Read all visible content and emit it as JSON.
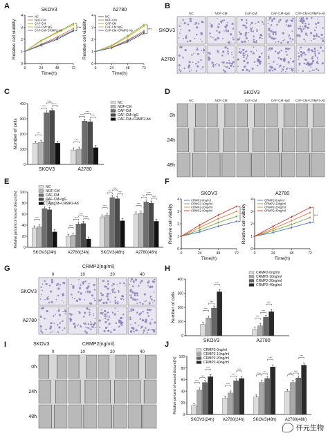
{
  "panel_letters": {
    "A": "A",
    "B": "B",
    "C": "C",
    "D": "D",
    "E": "E",
    "F": "F",
    "G": "G",
    "H": "H",
    "I": "I",
    "J": "J"
  },
  "colors": {
    "nc": "#555555",
    "nof": "#e07b39",
    "caf": "#7aa83c",
    "igg": "#d4b12f",
    "ab": "#4a6fb5",
    "bar_nc": "#dcdcdc",
    "bar_nof": "#b4b4b4",
    "bar_caf": "#6e6e6e",
    "bar_igg": "#4a4a4a",
    "bar_ab": "#111111",
    "stain": "#8a7fb8",
    "scratch": "#c8c8c8"
  },
  "legend5": [
    "NC",
    "NOF-CM",
    "CAF-CM",
    "CAF-CM+IgG",
    "CAF-CM+CRMP2-Ab"
  ],
  "legend4": [
    "CRMP2-0ng/ml",
    "CRMP2-10ng/ml",
    "CRMP2-20ng/ml",
    "CRMP2-40ng/ml"
  ],
  "sig": "***",
  "panelA": {
    "ylabel": "Relative cell viability",
    "xlabel": "Time(h)",
    "titles": [
      "SKOV3",
      "A2780"
    ],
    "xticks": [
      "0",
      "24",
      "48",
      "72"
    ],
    "yticks": [
      "0",
      "1",
      "2",
      "3",
      "4"
    ]
  },
  "panelB": {
    "rows": [
      "SKOV3",
      "A2780"
    ],
    "cols": [
      "NC",
      "NOF-CM",
      "CAF-CM",
      "CAF-CM+IgG",
      "CAF-CM+CRMP2-Ab"
    ]
  },
  "panelC": {
    "ylabel": "Number of cells",
    "groups": [
      "SKOV3",
      "A2780"
    ],
    "yticks": [
      "0",
      "100",
      "200",
      "300",
      "400"
    ]
  },
  "panelD": {
    "title": "SKOV3",
    "cols": [
      "NC",
      "NOF-CM",
      "CAF-CM",
      "CAF-CM+IgG",
      "CAF-CM+CRMP2-Ab"
    ],
    "rows": [
      "0h",
      "24h",
      "48h"
    ]
  },
  "panelE": {
    "ylabel": "Relative percent of wound closure(%)",
    "groups": [
      "SKOV3(24h)",
      "A2780(24h)",
      "SKOV3(48h)",
      "A2780(48h)"
    ],
    "yticks": [
      "0",
      "20",
      "40",
      "60",
      "80",
      "100"
    ]
  },
  "panelF": {
    "ylabel": "Relative cell viability",
    "xlabel": "Time(h)",
    "titles": [
      "SKOV3",
      "A2780"
    ],
    "xticks": [
      "0",
      "24",
      "48",
      "72"
    ],
    "yticks": [
      "0",
      "1",
      "2",
      "3",
      "4"
    ]
  },
  "panelG": {
    "header": "CRMP2(ng/ml)",
    "cols": [
      "0",
      "10",
      "20",
      "40"
    ],
    "rows": [
      "SKOV3",
      "A2780"
    ]
  },
  "panelH": {
    "ylabel": "Number of cells",
    "groups": [
      "SKOV3",
      "A2780"
    ],
    "yticks": [
      "0",
      "100",
      "200",
      "300",
      "400"
    ]
  },
  "panelI": {
    "title": "SKOV3",
    "header": "CRMP2(ng/ml)",
    "cols": [
      "0",
      "10",
      "20",
      "40"
    ],
    "rows": [
      "0h",
      "24h",
      "48h"
    ]
  },
  "panelJ": {
    "ylabel": "Relative percent of wound closure(%)",
    "groups": [
      "SKOV3(24h)",
      "A2780(24h)",
      "SKOV3(48h)",
      "A2780(48h)"
    ],
    "yticks": [
      "0",
      "20",
      "40",
      "60",
      "80",
      "100"
    ]
  },
  "watermark": "仟元生物",
  "chart_data": [
    {
      "panel": "A",
      "type": "line",
      "title": "SKOV3",
      "xlabel": "Time(h)",
      "ylabel": "Relative cell viability",
      "x": [
        0,
        24,
        48,
        72
      ],
      "ylim": [
        0,
        4
      ],
      "series": [
        {
          "name": "NC",
          "values": [
            1.0,
            1.5,
            2.0,
            2.7
          ]
        },
        {
          "name": "NOF-CM",
          "values": [
            1.0,
            1.6,
            2.2,
            2.9
          ]
        },
        {
          "name": "CAF-CM",
          "values": [
            1.0,
            1.9,
            2.6,
            3.3
          ]
        },
        {
          "name": "CAF-CM+IgG",
          "values": [
            1.0,
            1.85,
            2.55,
            3.2
          ]
        },
        {
          "name": "CAF-CM+CRMP2-Ab",
          "values": [
            1.0,
            1.55,
            2.1,
            2.75
          ]
        }
      ]
    },
    {
      "panel": "A",
      "type": "line",
      "title": "A2780",
      "xlabel": "Time(h)",
      "ylabel": "Relative cell viability",
      "x": [
        0,
        24,
        48,
        72
      ],
      "ylim": [
        0,
        4
      ],
      "series": [
        {
          "name": "NC",
          "values": [
            1.0,
            1.3,
            1.8,
            2.5
          ]
        },
        {
          "name": "NOF-CM",
          "values": [
            1.0,
            1.35,
            1.95,
            2.7
          ]
        },
        {
          "name": "CAF-CM",
          "values": [
            1.0,
            1.5,
            2.3,
            3.2
          ]
        },
        {
          "name": "CAF-CM+IgG",
          "values": [
            1.0,
            1.45,
            2.2,
            3.1
          ]
        },
        {
          "name": "CAF-CM+CRMP2-Ab",
          "values": [
            1.0,
            1.3,
            1.9,
            2.6
          ]
        }
      ]
    },
    {
      "panel": "C",
      "type": "bar",
      "ylabel": "Number of cells",
      "ylim": [
        0,
        400
      ],
      "categories": [
        "SKOV3",
        "A2780"
      ],
      "series": [
        {
          "name": "NC",
          "values": [
            140,
            95
          ]
        },
        {
          "name": "NOF-CM",
          "values": [
            145,
            100
          ]
        },
        {
          "name": "CAF-CM",
          "values": [
            340,
            285
          ]
        },
        {
          "name": "CAF-CM+IgG",
          "values": [
            355,
            280
          ]
        },
        {
          "name": "CAF-CM+CRMP2-Ab",
          "values": [
            140,
            110
          ]
        }
      ]
    },
    {
      "panel": "E",
      "type": "bar",
      "ylabel": "Relative percent of wound closure(%)",
      "ylim": [
        0,
        100
      ],
      "categories": [
        "SKOV3(24h)",
        "A2780(24h)",
        "SKOV3(48h)",
        "A2780(48h)"
      ],
      "series": [
        {
          "name": "NC",
          "values": [
            35,
            20,
            55,
            60
          ]
        },
        {
          "name": "NOF-CM",
          "values": [
            37,
            22,
            58,
            62
          ]
        },
        {
          "name": "CAF-CM",
          "values": [
            70,
            42,
            90,
            82
          ]
        },
        {
          "name": "CAF-CM+IgG",
          "values": [
            68,
            43,
            88,
            80
          ]
        },
        {
          "name": "CAF-CM+CRMP2-Ab",
          "values": [
            28,
            15,
            48,
            47
          ]
        }
      ]
    },
    {
      "panel": "F",
      "type": "line",
      "title": "SKOV3",
      "xlabel": "Time(h)",
      "ylabel": "Relative cell viability",
      "x": [
        0,
        24,
        48,
        72
      ],
      "ylim": [
        0,
        4
      ],
      "series": [
        {
          "name": "CRMP2-0ng/ml",
          "values": [
            1.0,
            1.35,
            1.8,
            2.2
          ]
        },
        {
          "name": "CRMP2-10ng/ml",
          "values": [
            1.0,
            1.5,
            2.1,
            2.6
          ]
        },
        {
          "name": "CRMP2-20ng/ml",
          "values": [
            1.0,
            1.7,
            2.4,
            3.0
          ]
        },
        {
          "name": "CRMP2-40ng/ml",
          "values": [
            1.0,
            1.9,
            2.7,
            3.4
          ]
        }
      ]
    },
    {
      "panel": "F",
      "type": "line",
      "title": "A2780",
      "xlabel": "Time(h)",
      "ylabel": "Relative cell viability",
      "x": [
        0,
        24,
        48,
        72
      ],
      "ylim": [
        0,
        4
      ],
      "series": [
        {
          "name": "CRMP2-0ng/ml",
          "values": [
            1.0,
            1.3,
            1.7,
            2.1
          ]
        },
        {
          "name": "CRMP2-10ng/ml",
          "values": [
            1.0,
            1.45,
            1.95,
            2.5
          ]
        },
        {
          "name": "CRMP2-20ng/ml",
          "values": [
            1.0,
            1.6,
            2.25,
            2.9
          ]
        },
        {
          "name": "CRMP2-40ng/ml",
          "values": [
            1.0,
            1.8,
            2.55,
            3.3
          ]
        }
      ]
    },
    {
      "panel": "H",
      "type": "bar",
      "ylabel": "Number of cells",
      "ylim": [
        0,
        400
      ],
      "categories": [
        "SKOV3",
        "A2780"
      ],
      "series": [
        {
          "name": "CRMP2-0ng/ml",
          "values": [
            80,
            45
          ]
        },
        {
          "name": "CRMP2-10ng/ml",
          "values": [
            125,
            70
          ]
        },
        {
          "name": "CRMP2-20ng/ml",
          "values": [
            195,
            130
          ]
        },
        {
          "name": "CRMP2-40ng/ml",
          "values": [
            310,
            170
          ]
        }
      ]
    },
    {
      "panel": "J",
      "type": "bar",
      "ylabel": "Relative percent of wound closure(%)",
      "ylim": [
        0,
        100
      ],
      "categories": [
        "SKOV3(24h)",
        "A2780(24h)",
        "SKOV3(48h)",
        "A2780(48h)"
      ],
      "series": [
        {
          "name": "CRMP2-0ng/ml",
          "values": [
            15,
            28,
            30,
            40
          ]
        },
        {
          "name": "CRMP2-10ng/ml",
          "values": [
            42,
            37,
            55,
            55
          ]
        },
        {
          "name": "CRMP2-20ng/ml",
          "values": [
            55,
            58,
            62,
            63
          ]
        },
        {
          "name": "CRMP2-40ng/ml",
          "values": [
            65,
            62,
            82,
            85
          ]
        }
      ]
    }
  ]
}
